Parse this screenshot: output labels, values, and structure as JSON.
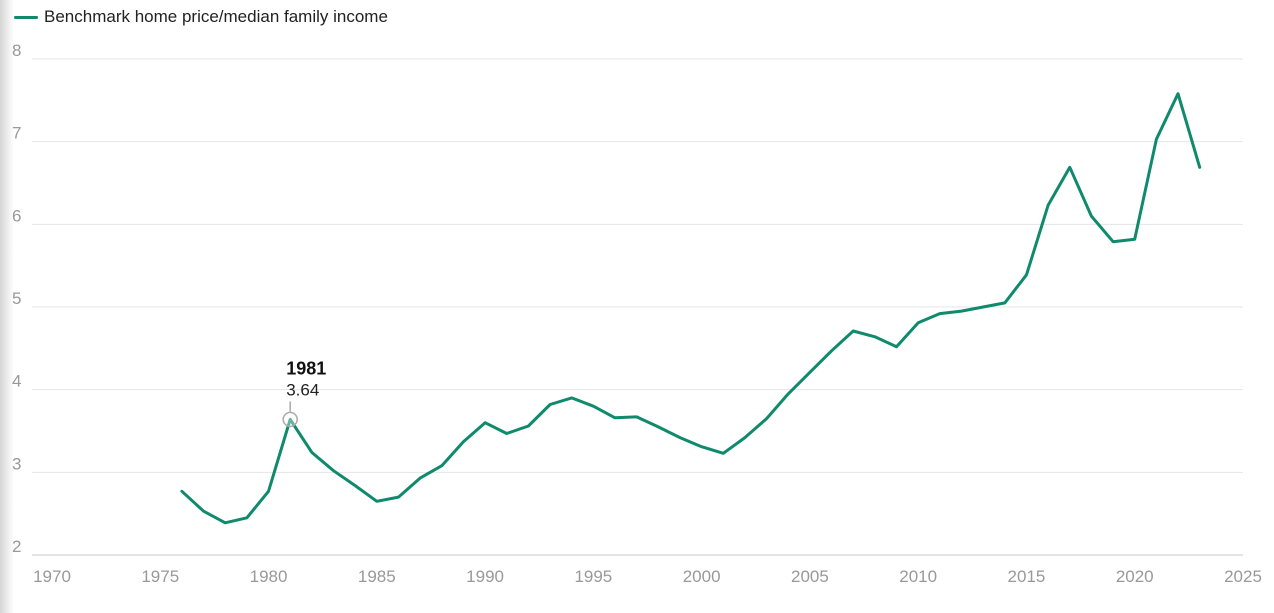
{
  "chart_data": {
    "type": "line",
    "title": "",
    "xlabel": "",
    "ylabel": "",
    "xlim": [
      1970,
      2025
    ],
    "ylim": [
      2,
      8
    ],
    "x_ticks": [
      "1970",
      "1975",
      "1980",
      "1985",
      "1990",
      "1995",
      "2000",
      "2005",
      "2010",
      "2015",
      "2020",
      "2025"
    ],
    "y_ticks": [
      "2",
      "3",
      "4",
      "5",
      "6",
      "7",
      "8"
    ],
    "grid": true,
    "legend_position": "top-left",
    "series": [
      {
        "name": "Benchmark home price/median family income",
        "color": "#0f8a6c",
        "x": [
          1976,
          1977,
          1978,
          1979,
          1980,
          1981,
          1982,
          1983,
          1984,
          1985,
          1986,
          1987,
          1988,
          1989,
          1990,
          1991,
          1992,
          1993,
          1994,
          1995,
          1996,
          1997,
          1998,
          1999,
          2000,
          2001,
          2002,
          2003,
          2004,
          2005,
          2006,
          2007,
          2008,
          2009,
          2010,
          2011,
          2012,
          2013,
          2014,
          2015,
          2016,
          2017,
          2018,
          2019,
          2020,
          2021,
          2022,
          2023
        ],
        "y": [
          2.77,
          2.53,
          2.39,
          2.45,
          2.77,
          3.64,
          3.24,
          3.02,
          2.84,
          2.65,
          2.7,
          2.93,
          3.08,
          3.37,
          3.6,
          3.47,
          3.56,
          3.82,
          3.9,
          3.8,
          3.66,
          3.67,
          3.55,
          3.42,
          3.31,
          3.23,
          3.42,
          3.65,
          3.95,
          4.21,
          4.47,
          4.71,
          4.64,
          4.52,
          4.81,
          4.92,
          4.95,
          5.0,
          5.05,
          5.39,
          6.23,
          6.69,
          6.1,
          5.79,
          5.82,
          7.03,
          7.58,
          6.69
        ]
      }
    ],
    "tooltip": {
      "title": "1981",
      "value": "3.64",
      "x": 1981,
      "y": 3.64
    }
  }
}
